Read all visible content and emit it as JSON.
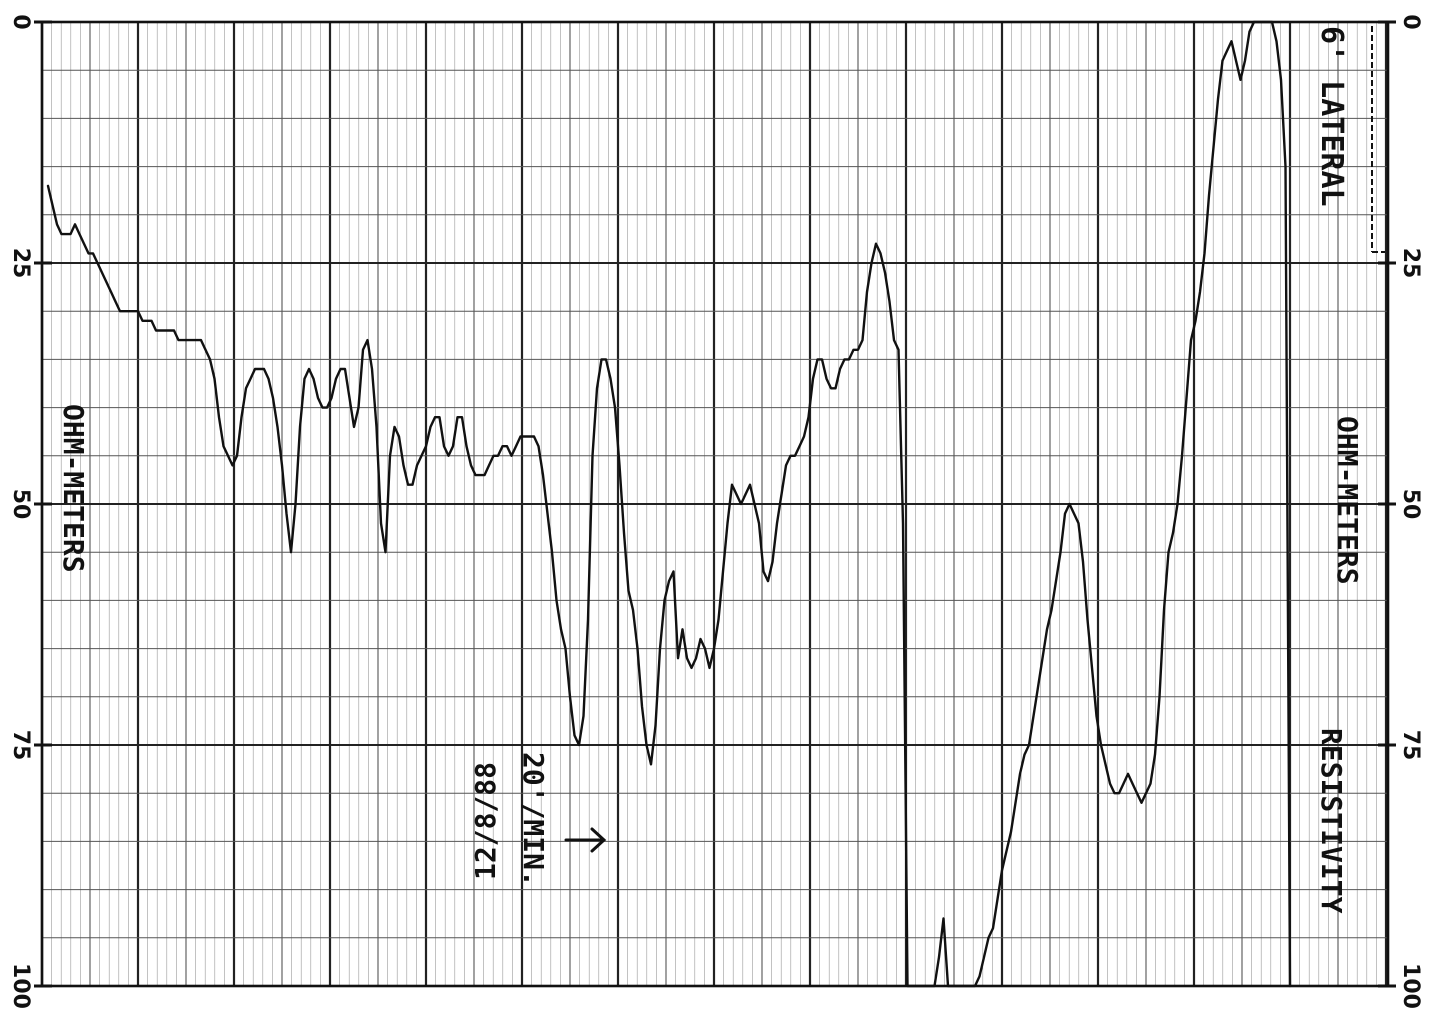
{
  "chart_data": {
    "type": "line",
    "title": "",
    "log_name": "6' LATERAL",
    "axis_title": "RESISTIVITY",
    "unit_label": "OHM-METERS",
    "annotation_speed": "20'/MIN.",
    "annotation_date": "12/8/88",
    "resistivity_range": [
      0,
      100
    ],
    "resistivity_ticks": [
      "0",
      "25",
      "50",
      "75",
      "100"
    ],
    "grid": true,
    "series": [
      {
        "values": [
          17,
          19,
          21,
          22,
          22,
          22,
          21,
          22,
          23,
          24,
          24,
          25,
          26,
          27,
          28,
          29,
          30,
          30,
          30,
          30,
          30,
          31,
          31,
          31,
          32,
          32,
          32,
          32,
          32,
          33,
          33,
          33,
          33,
          33,
          33,
          34,
          35,
          37,
          41,
          44,
          45,
          46,
          45,
          41,
          38,
          37,
          36,
          36,
          36,
          37,
          39,
          42,
          46,
          51,
          55,
          50,
          42,
          37,
          36,
          37,
          39,
          40,
          40,
          39,
          37,
          36,
          36,
          39,
          42,
          40,
          34,
          33,
          36,
          42,
          52,
          55,
          45,
          42,
          43,
          46,
          48,
          48,
          46,
          45,
          44,
          42,
          41,
          41,
          44,
          45,
          44,
          41,
          41,
          44,
          46,
          47,
          47,
          47,
          46,
          45,
          45,
          44,
          44,
          45,
          44,
          43,
          43,
          43,
          43,
          44,
          47,
          51,
          55,
          60,
          63,
          65,
          70,
          74,
          75,
          72,
          62,
          45,
          38,
          35,
          35,
          37,
          40,
          46,
          53,
          59,
          61,
          65,
          71,
          75,
          77,
          73,
          65,
          60,
          58,
          57,
          66,
          63,
          66,
          67,
          66,
          64,
          65,
          67,
          65,
          62,
          57,
          52,
          48,
          49,
          50,
          49,
          48,
          50,
          52,
          57,
          58,
          56,
          52,
          49,
          46,
          45,
          45,
          44,
          43,
          41,
          37,
          35,
          35,
          37,
          38,
          38,
          36,
          35,
          35,
          34,
          34,
          33,
          28,
          25,
          23,
          24,
          26,
          29,
          33,
          34,
          52,
          100,
          100,
          100,
          100,
          100,
          100,
          100,
          97,
          93,
          100,
          100,
          100,
          100,
          100,
          100,
          100,
          99,
          97,
          95,
          94,
          91,
          88,
          86,
          84,
          81,
          78,
          76,
          75,
          72,
          69,
          66,
          63,
          61,
          58,
          55,
          51,
          50,
          51,
          52,
          56,
          62,
          67,
          72,
          75,
          77,
          79,
          80,
          80,
          79,
          78,
          79,
          80,
          81,
          80,
          79,
          76,
          70,
          61,
          55,
          53,
          50,
          45,
          39,
          33,
          31,
          28,
          24,
          18,
          13,
          8,
          4,
          3,
          2,
          4,
          6,
          4,
          1,
          0,
          0,
          0,
          0,
          0,
          2,
          6,
          15,
          100
        ]
      }
    ]
  }
}
